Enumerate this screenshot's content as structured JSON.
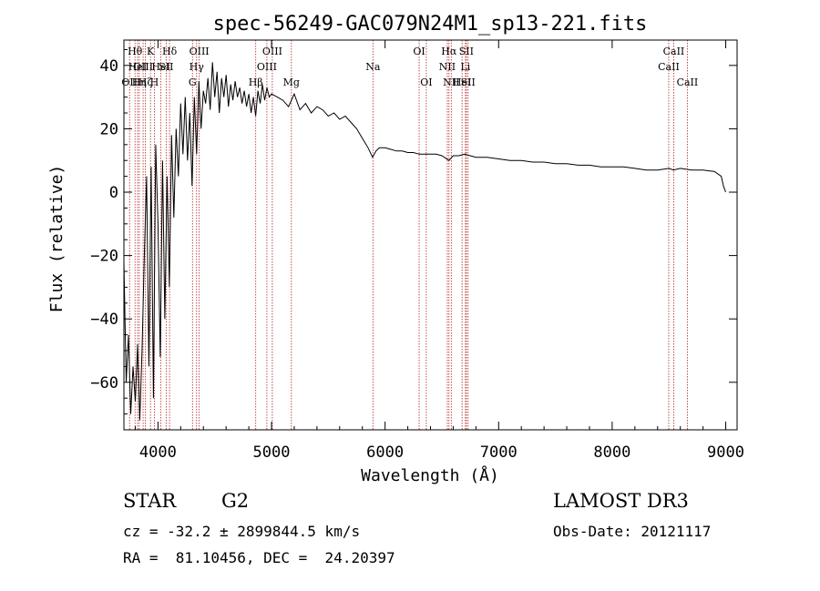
{
  "chart_data": {
    "type": "line",
    "title": "spec-56249-GAC079N24M1_sp13-221.fits",
    "xlabel": "Wavelength (Å)",
    "ylabel": "Flux (relative)",
    "xlim": [
      3700,
      9100
    ],
    "ylim": [
      -75,
      48
    ],
    "xticks": [
      4000,
      5000,
      6000,
      7000,
      8000,
      9000
    ],
    "yticks": [
      -60,
      -40,
      -20,
      0,
      20,
      40
    ],
    "series": [
      {
        "name": "spectrum",
        "x": [
          3700,
          3720,
          3740,
          3760,
          3780,
          3800,
          3820,
          3840,
          3860,
          3880,
          3900,
          3920,
          3940,
          3960,
          3980,
          4000,
          4020,
          4040,
          4060,
          4080,
          4100,
          4120,
          4140,
          4160,
          4180,
          4200,
          4220,
          4240,
          4260,
          4280,
          4300,
          4320,
          4340,
          4360,
          4380,
          4400,
          4420,
          4440,
          4460,
          4480,
          4500,
          4520,
          4540,
          4560,
          4580,
          4600,
          4620,
          4640,
          4660,
          4680,
          4700,
          4720,
          4740,
          4760,
          4780,
          4800,
          4820,
          4840,
          4860,
          4880,
          4900,
          4920,
          4940,
          4960,
          4980,
          5000,
          5050,
          5100,
          5150,
          5200,
          5250,
          5300,
          5350,
          5400,
          5450,
          5500,
          5550,
          5600,
          5650,
          5700,
          5750,
          5800,
          5850,
          5890,
          5920,
          5950,
          6000,
          6050,
          6100,
          6150,
          6200,
          6250,
          6300,
          6350,
          6400,
          6450,
          6500,
          6563,
          6600,
          6650,
          6700,
          6750,
          6800,
          6900,
          7000,
          7100,
          7200,
          7300,
          7400,
          7500,
          7600,
          7700,
          7800,
          7900,
          8000,
          8100,
          8200,
          8300,
          8400,
          8500,
          8540,
          8600,
          8700,
          8800,
          8900,
          8960,
          8980,
          9000
        ],
        "values": [
          -22,
          -60,
          -45,
          -70,
          -55,
          -66,
          -48,
          -72,
          -50,
          -20,
          5,
          -55,
          8,
          -65,
          15,
          -10,
          -52,
          10,
          -40,
          5,
          -30,
          18,
          -8,
          20,
          5,
          28,
          12,
          30,
          10,
          25,
          2,
          30,
          12,
          35,
          20,
          32,
          28,
          36,
          26,
          41,
          30,
          38,
          25,
          36,
          30,
          37,
          27,
          34,
          29,
          35,
          30,
          33,
          28,
          32,
          27,
          31,
          25,
          30,
          24,
          32,
          28,
          34,
          29,
          33,
          30,
          31,
          30,
          29,
          27,
          31,
          26,
          28,
          25,
          27,
          26,
          24,
          25,
          23,
          24,
          22,
          20,
          17,
          14,
          11,
          13,
          14,
          14,
          13.5,
          13,
          13,
          12.5,
          12.5,
          12,
          12,
          12,
          12,
          11.5,
          10,
          11.5,
          11.5,
          12,
          11.5,
          11,
          11,
          10.5,
          10,
          10,
          9.5,
          9.5,
          9,
          9,
          8.5,
          8.5,
          8,
          8,
          8,
          7.5,
          7,
          7,
          7.5,
          7,
          7.5,
          7,
          7,
          6.5,
          5,
          2,
          0
        ]
      }
    ],
    "lines": [
      {
        "x": 3750,
        "label": "OII",
        "row": 2
      },
      {
        "x": 3798,
        "label": "Hθ",
        "row": 0
      },
      {
        "x": 3820,
        "label": "HeI",
        "row": 1
      },
      {
        "x": 3835,
        "label": "Hη",
        "row": 2
      },
      {
        "x": 3869,
        "label": "OIII",
        "row": 1
      },
      {
        "x": 3889,
        "label": "Hζ",
        "row": 2
      },
      {
        "x": 3934,
        "label": "K",
        "row": 0
      },
      {
        "x": 3968,
        "label": "H",
        "row": 2
      },
      {
        "x": 4026,
        "label": "HeI",
        "row": 1
      },
      {
        "x": 4072,
        "label": "SII",
        "row": 1
      },
      {
        "x": 4102,
        "label": "Hδ",
        "row": 0
      },
      {
        "x": 4304,
        "label": "G",
        "row": 2
      },
      {
        "x": 4340,
        "label": "Hγ",
        "row": 1
      },
      {
        "x": 4363,
        "label": "OIII",
        "row": 0
      },
      {
        "x": 4861,
        "label": "Hβ",
        "row": 2
      },
      {
        "x": 4959,
        "label": "OIII",
        "row": 1
      },
      {
        "x": 5007,
        "label": "OIII",
        "row": 0
      },
      {
        "x": 5175,
        "label": "Mg",
        "row": 2
      },
      {
        "x": 5893,
        "label": "Na",
        "row": 1
      },
      {
        "x": 6300,
        "label": "OI",
        "row": 0
      },
      {
        "x": 6363,
        "label": "OI",
        "row": 2
      },
      {
        "x": 6548,
        "label": "NII",
        "row": 1
      },
      {
        "x": 6563,
        "label": "Hα",
        "row": 0
      },
      {
        "x": 6583,
        "label": "NII",
        "row": 2
      },
      {
        "x": 6678,
        "label": "HeI",
        "row": 2
      },
      {
        "x": 6716,
        "label": "SII",
        "row": 0
      },
      {
        "x": 6708,
        "label": "Li",
        "row": 1
      },
      {
        "x": 6731,
        "label": "SII",
        "row": 2
      },
      {
        "x": 8498,
        "label": "CaII",
        "row": 1
      },
      {
        "x": 8542,
        "label": "CaII",
        "row": 0
      },
      {
        "x": 8662,
        "label": "CaII",
        "row": 2
      }
    ]
  },
  "info": {
    "object_class": "STAR",
    "subclass": "G2",
    "cz": "cz = -32.2 ± 2899844.5 km/s",
    "radec": "RA =  81.10456, DEC =  24.20397",
    "survey": "LAMOST DR3",
    "obs_date": "Obs-Date: 20121117"
  },
  "colors": {
    "line": "#000000",
    "marker": "#b22222"
  }
}
